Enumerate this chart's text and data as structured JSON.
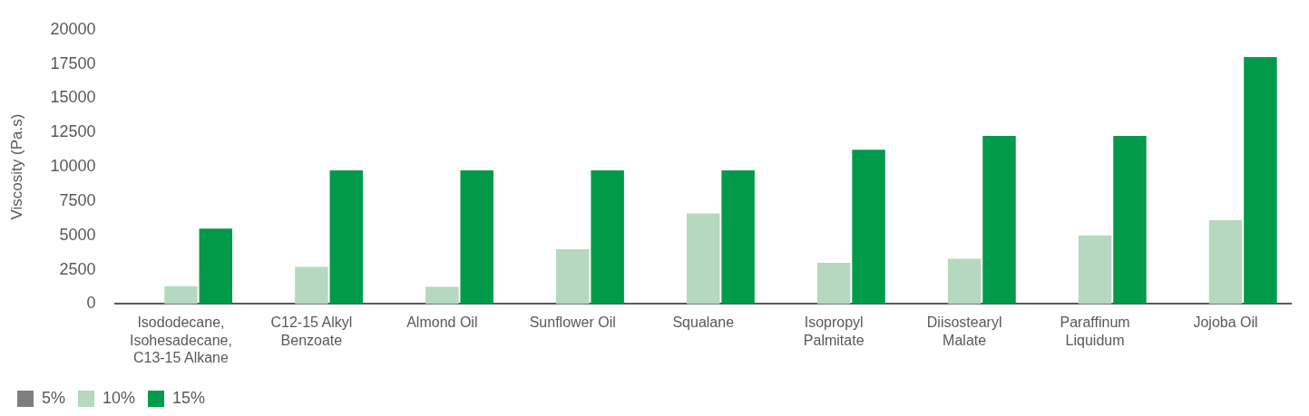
{
  "chart_data": {
    "type": "bar",
    "ylabel": "Viscosity (Pa.s)",
    "categories": [
      "Isododecane, Isohesadecane, C13-15 Alkane",
      "C12-15 Alkyl Benzoate",
      "Almond Oil",
      "Sunflower Oil",
      "Squalane",
      "Isopropyl Palmitate",
      "Diisostearyl Malate",
      "Paraffinum Liquidum",
      "Jojoba Oil"
    ],
    "series": [
      {
        "name": "5%",
        "color": "#7f7f7f",
        "values": [
          0,
          0,
          0,
          0,
          0,
          0,
          0,
          0,
          0
        ]
      },
      {
        "name": "10%",
        "color": "#b5d8bf",
        "values": [
          1300,
          2700,
          1250,
          4000,
          6600,
          3000,
          3300,
          5000,
          6100
        ]
      },
      {
        "name": "15%",
        "color": "#009a4a",
        "values": [
          5500,
          9750,
          9750,
          9750,
          9750,
          11250,
          12250,
          12250,
          18000
        ]
      }
    ],
    "ylim": [
      0,
      20000
    ],
    "yticks": [
      0,
      2500,
      5000,
      7500,
      10000,
      12500,
      15000,
      17500,
      20000
    ],
    "grid": false,
    "legend": "bottom left"
  }
}
